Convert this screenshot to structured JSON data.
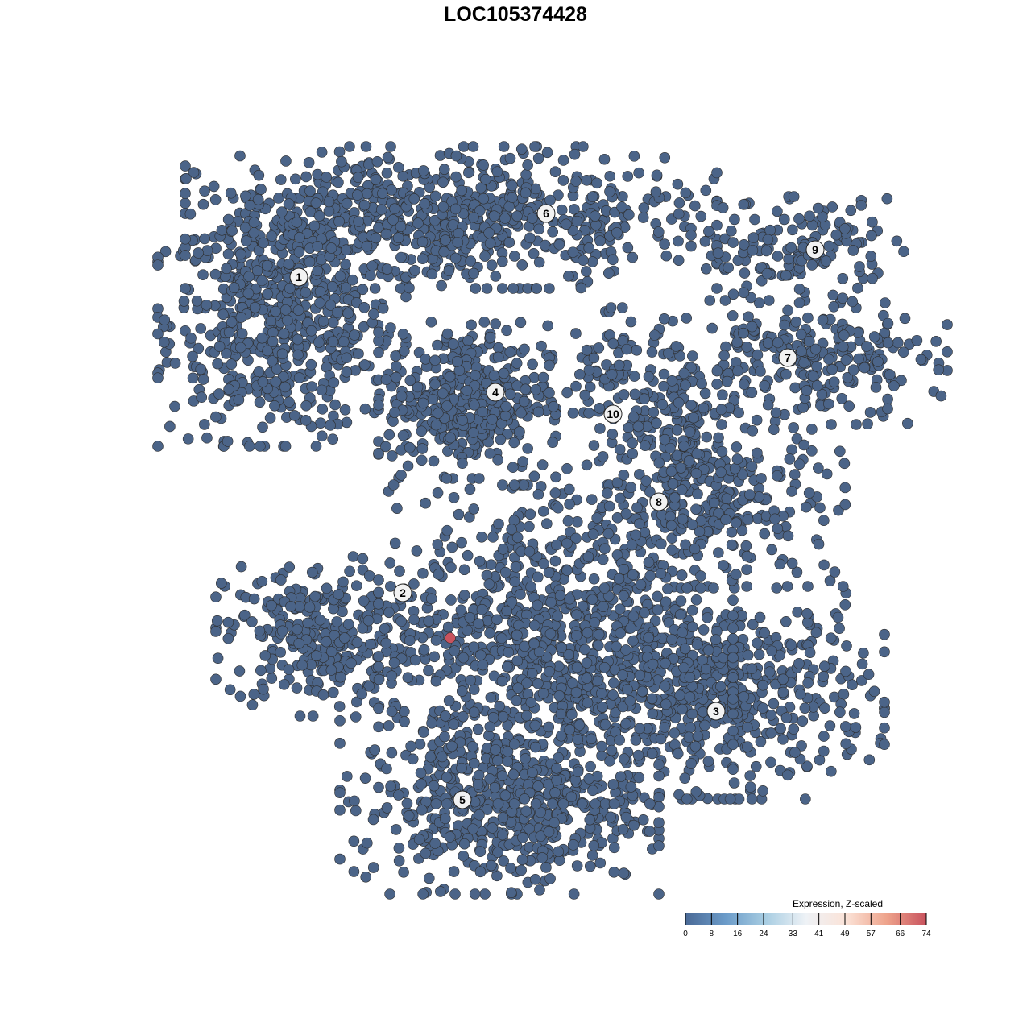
{
  "chart_data": {
    "type": "scatter",
    "title": "LOC105374428",
    "xlabel": "",
    "ylabel": "",
    "grid": false,
    "point_color_default": "#4b6488",
    "point_stroke": "#2e2e2e",
    "clusters": [
      {
        "label": "1",
        "label_pos": [
          -26.9,
          29.6
        ],
        "regions": [
          {
            "center": [
              -29,
              24
            ],
            "sd": [
              7,
              7
            ],
            "n": 600
          }
        ]
      },
      {
        "label": "2",
        "label_pos": [
          -14.0,
          -9.6
        ],
        "regions": [
          {
            "center": [
              -24,
              -15
            ],
            "sd": [
              6,
              4.5
            ],
            "n": 300
          }
        ]
      },
      {
        "label": "3",
        "label_pos": [
          24.9,
          -24.3
        ],
        "regions": [
          {
            "center": [
              26,
              -22
            ],
            "sd": [
              9,
              6
            ],
            "n": 500
          }
        ]
      },
      {
        "label": "4",
        "label_pos": [
          -2.5,
          15.3
        ],
        "regions": [
          {
            "center": [
              -6,
              14.5
            ],
            "sd": [
              5,
              4.5
            ],
            "n": 400
          }
        ]
      },
      {
        "label": "5",
        "label_pos": [
          -6.6,
          -35.3
        ],
        "regions": [
          {
            "center": [
              -2,
              -36
            ],
            "sd": [
              9,
              5
            ],
            "n": 500
          },
          {
            "center": [
              5,
              -16
            ],
            "sd": [
              10,
              9
            ],
            "n": 900
          }
        ]
      },
      {
        "label": "6",
        "label_pos": [
          3.8,
          37.5
        ],
        "regions": [
          {
            "center": [
              -8,
              37
            ],
            "sd": [
              15,
              4
            ],
            "n": 700
          }
        ]
      },
      {
        "label": "7",
        "label_pos": [
          33.8,
          19.6
        ],
        "regions": [
          {
            "center": [
              36,
              19
            ],
            "sd": [
              8,
              3.5
            ],
            "n": 250
          }
        ]
      },
      {
        "label": "8",
        "label_pos": [
          17.8,
          1.7
        ],
        "regions": [
          {
            "center": [
              24,
              2
            ],
            "sd": [
              8,
              5
            ],
            "n": 300
          },
          {
            "center": [
              21,
              11
            ],
            "sd": [
              3,
              4
            ],
            "n": 100
          }
        ]
      },
      {
        "label": "9",
        "label_pos": [
          37.2,
          33.0
        ],
        "regions": [
          {
            "center": [
              35,
              33
            ],
            "sd": [
              6,
              3
            ],
            "n": 150
          }
        ]
      },
      {
        "label": "10",
        "label_pos": [
          12.1,
          12.6
        ],
        "regions": [
          {
            "center": [
              13,
              17
            ],
            "sd": [
              4,
              4
            ],
            "n": 100
          }
        ]
      }
    ],
    "highlighted_points": [
      {
        "x": -8.1,
        "y": -15.2,
        "value": 74
      }
    ],
    "colorbar": {
      "title": "Expression, Z-scaled",
      "min": 0,
      "max": 74,
      "ticks": [
        "0",
        "8",
        "16",
        "24",
        "33",
        "41",
        "49",
        "57",
        "66",
        "74"
      ],
      "colors": [
        "#4a6a96",
        "#6b9bc9",
        "#a8cde2",
        "#eef2f6",
        "#fbe3d8",
        "#eea48c",
        "#c9535e"
      ],
      "position": "bottom-right"
    }
  }
}
